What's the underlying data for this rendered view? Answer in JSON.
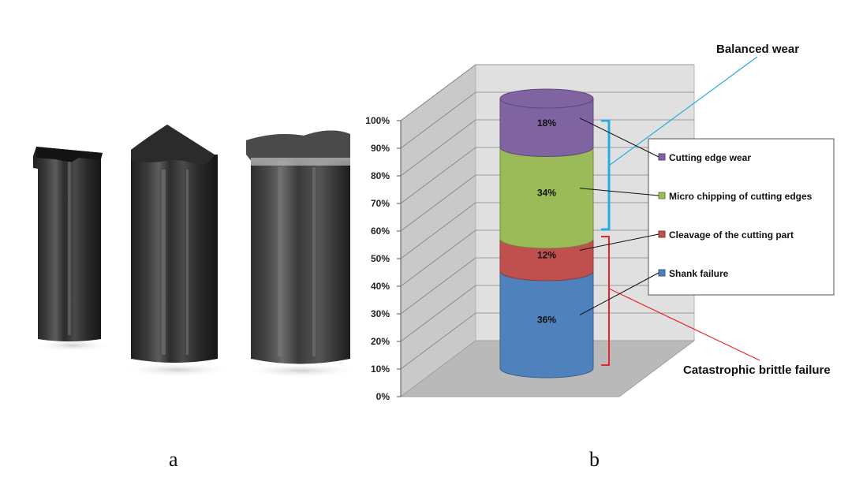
{
  "captions": {
    "a": "a",
    "b": "b"
  },
  "chart_data": {
    "type": "bar",
    "stacked": true,
    "style": "3d-cylinder",
    "categories": [
      ""
    ],
    "series": [
      {
        "name": "Shank failure",
        "values": [
          36
        ],
        "label": "36%",
        "color": "#4f81bd"
      },
      {
        "name": "Cleavage of the cutting part",
        "values": [
          12
        ],
        "label": "12%",
        "color": "#c0504d"
      },
      {
        "name": "Micro chipping of cutting edges",
        "values": [
          34
        ],
        "label": "34%",
        "color": "#9bbb59"
      },
      {
        "name": "Cutting edge wear",
        "values": [
          18
        ],
        "label": "18%",
        "color": "#8064a2"
      }
    ],
    "ylim": [
      0,
      100
    ],
    "yticks": [
      "0%",
      "10%",
      "20%",
      "30%",
      "40%",
      "50%",
      "60%",
      "70%",
      "80%",
      "90%",
      "100%"
    ],
    "grid": true,
    "legend": "right",
    "annotations": [
      {
        "text": "Balanced wear",
        "color": "#29abe2"
      },
      {
        "text": "Catastrophic brittle failure",
        "color": "#e8262b"
      }
    ]
  }
}
